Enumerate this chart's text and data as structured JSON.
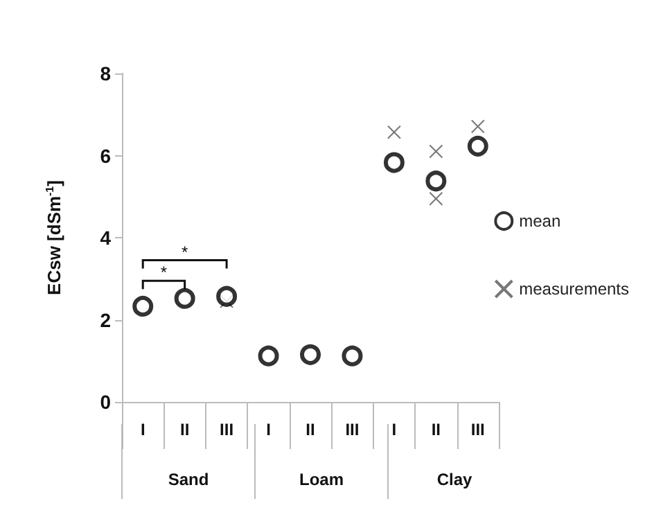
{
  "chart_data": {
    "type": "scatter",
    "ylabel": "ECsw [dSm$^{-1}$]",
    "categories": [
      "I",
      "II",
      "III",
      "I",
      "II",
      "III",
      "I",
      "II",
      "III"
    ],
    "series": [
      {
        "name": "mean",
        "color": "#000000",
        "marker": "circle",
        "values": [
          2.33,
          2.52,
          2.57,
          1.12,
          1.15,
          1.12,
          5.83,
          5.38,
          6.23
        ]
      },
      {
        "name": "measurements",
        "color": "#555555",
        "marker": "cross",
        "values": [
          null,
          null,
          2.45,
          null,
          null,
          null,
          6.57,
          6.1,
          6.71
        ]
      },
      {
        "color": "#555555",
        "marker": "cross",
        "values": [
          null,
          null,
          null,
          null,
          null,
          null,
          null,
          4.95,
          null
        ]
      }
    ],
    "ylim": [
      0,
      8
    ],
    "yticks": [
      0,
      2,
      4,
      6,
      8
    ],
    "grid": false,
    "legend": "right",
    "annotations": [
      "*",
      "*",
      "Sand",
      "Loam",
      "Clay"
    ]
  }
}
